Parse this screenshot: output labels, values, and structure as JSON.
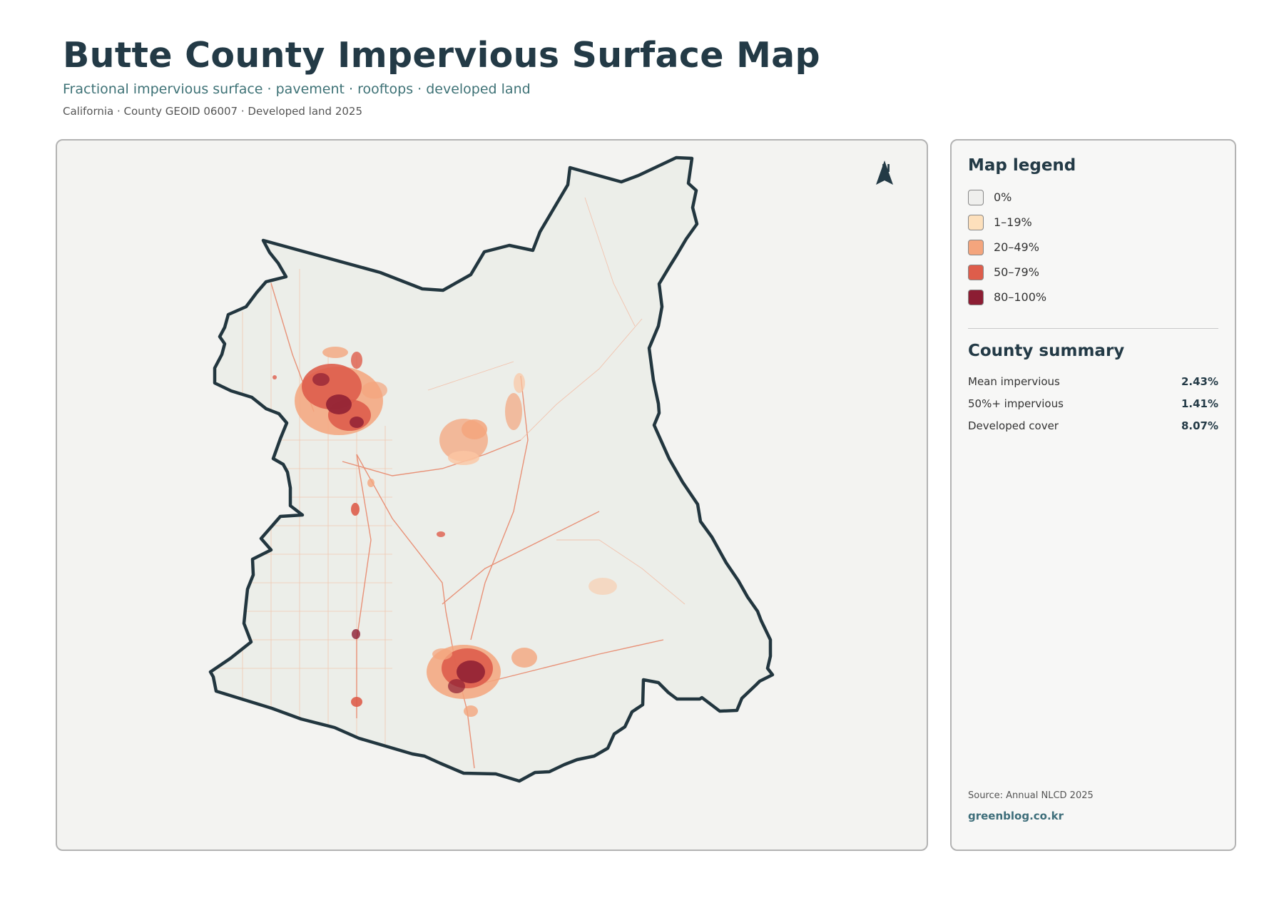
{
  "header": {
    "title": "Butte County Impervious Surface Map",
    "subtitle": "Fractional impervious surface · pavement · rooftops · developed land",
    "meta": "California · County GEOID 06007 · Developed land 2025"
  },
  "map": {
    "north_label": "N",
    "icon": "north-arrow-icon",
    "colors": {
      "land": "#eceee9",
      "boundary": "#22363f",
      "class_0": "#efefed",
      "class_1": "#fde0bc",
      "class_2": "#f4a57d",
      "class_3": "#de5d4b",
      "class_4": "#8c1d33"
    }
  },
  "legend": {
    "title": "Map legend",
    "items": [
      {
        "label": "0%",
        "color": "#efefed"
      },
      {
        "label": "1–19%",
        "color": "#fde0bc"
      },
      {
        "label": "20–49%",
        "color": "#f4a57d"
      },
      {
        "label": "50–79%",
        "color": "#de5d4b"
      },
      {
        "label": "80–100%",
        "color": "#8c1d33"
      }
    ]
  },
  "summary": {
    "title": "County summary",
    "rows": [
      {
        "label": "Mean impervious",
        "value": "2.43%"
      },
      {
        "label": "50%+ impervious",
        "value": "1.41%"
      },
      {
        "label": "Developed cover",
        "value": "8.07%"
      }
    ]
  },
  "footer": {
    "source": "Source: Annual NLCD 2025",
    "brand": "greenblog.co.kr"
  }
}
